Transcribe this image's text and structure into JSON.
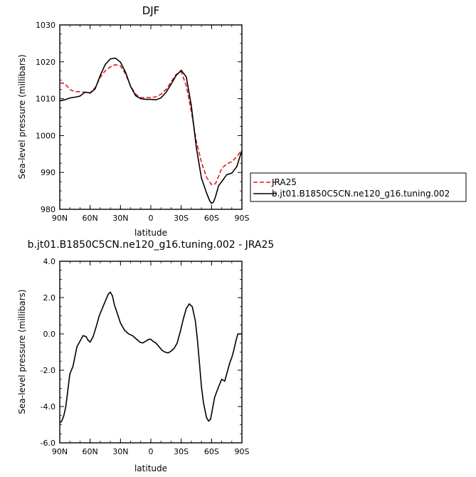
{
  "chart_data": [
    {
      "type": "line",
      "title": "DJF",
      "xlabel": "latitude",
      "ylabel": "Sea-level pressure (millibars)",
      "xlim": [
        90,
        -90
      ],
      "ylim": [
        980,
        1030
      ],
      "x_tick_values": [
        90,
        60,
        30,
        0,
        -30,
        -60,
        -90
      ],
      "x_tick_labels": [
        "90N",
        "60N",
        "30N",
        "0",
        "30S",
        "60S",
        "90S"
      ],
      "y_tick_values": [
        980,
        990,
        1000,
        1010,
        1020,
        1030
      ],
      "y_tick_labels": [
        "980",
        "990",
        "1000",
        "1010",
        "1020",
        "1030"
      ],
      "grid": false,
      "legend_position": "right",
      "series": [
        {
          "name": "JRA25",
          "color": "#e8141b",
          "dash": "dashed",
          "x": [
            90,
            85,
            80,
            75,
            70,
            65,
            60,
            55,
            50,
            45,
            40,
            35,
            30,
            25,
            20,
            15,
            10,
            5,
            0,
            -5,
            -10,
            -15,
            -20,
            -25,
            -30,
            -35,
            -40,
            -45,
            -50,
            -55,
            -60,
            -62,
            -64,
            -66,
            -68,
            -70,
            -75,
            -80,
            -85,
            -90
          ],
          "values": [
            1014.3,
            1014.1,
            1012.5,
            1011.9,
            1011.9,
            1011.7,
            1011.6,
            1013.0,
            1015.8,
            1017.6,
            1018.6,
            1019.2,
            1018.9,
            1016.7,
            1013.4,
            1011.2,
            1010.3,
            1010.3,
            1010.3,
            1010.5,
            1011.2,
            1012.5,
            1014.5,
            1016.6,
            1017.3,
            1013.5,
            1006.5,
            998.4,
            992.8,
            988.7,
            986.7,
            986.7,
            987.0,
            988.3,
            989.7,
            991.1,
            992.3,
            992.9,
            994.3,
            996.2
          ]
        },
        {
          "name": "b.jt01.B1850C5CN.ne120_g16.tuning.002",
          "color": "#000000",
          "dash": "solid",
          "x": [
            90,
            85,
            80,
            75,
            70,
            65,
            60,
            55,
            50,
            45,
            40,
            35,
            30,
            25,
            20,
            15,
            10,
            5,
            0,
            -5,
            -10,
            -15,
            -20,
            -25,
            -30,
            -35,
            -40,
            -45,
            -50,
            -55,
            -58,
            -60,
            -62,
            -64,
            -67,
            -70,
            -75,
            -80,
            -85,
            -90
          ],
          "values": [
            1009.4,
            1009.7,
            1010.2,
            1010.4,
            1010.7,
            1011.8,
            1011.5,
            1012.7,
            1016.3,
            1019.3,
            1020.8,
            1021.0,
            1019.9,
            1017.2,
            1013.3,
            1010.8,
            1010.0,
            1009.8,
            1009.8,
            1009.7,
            1010.2,
            1011.7,
            1013.9,
            1016.3,
            1017.7,
            1015.9,
            1008.1,
            996.7,
            988.5,
            984.5,
            982.4,
            981.6,
            982.0,
            983.5,
            986.4,
            987.5,
            989.4,
            989.8,
            991.6,
            996.0
          ]
        }
      ]
    },
    {
      "type": "line",
      "title": "b.jt01.B1850C5CN.ne120_g16.tuning.002 - JRA25",
      "xlabel": "latitude",
      "ylabel": "Sea-level pressure (millibars)",
      "xlim": [
        90,
        -90
      ],
      "ylim": [
        -6.0,
        4.0
      ],
      "x_tick_values": [
        90,
        60,
        30,
        0,
        -30,
        -60,
        -90
      ],
      "x_tick_labels": [
        "90N",
        "60N",
        "30N",
        "0",
        "30S",
        "60S",
        "90S"
      ],
      "y_tick_values": [
        -6.0,
        -4.0,
        -2.0,
        0.0,
        2.0,
        4.0
      ],
      "y_tick_labels": [
        "-6.0",
        "-4.0",
        "-2.0",
        "0.0",
        "2.0",
        "4.0"
      ],
      "grid": false,
      "series": [
        {
          "color": "#000000",
          "dash": "solid",
          "x": [
            90,
            88,
            86,
            84,
            80,
            77,
            73,
            70,
            67,
            64,
            62,
            60,
            57,
            54,
            51,
            48,
            45,
            42,
            40,
            38,
            36,
            33,
            30,
            26,
            22,
            18,
            14,
            11,
            8,
            5,
            2,
            0,
            -2,
            -5,
            -8,
            -11,
            -14,
            -17,
            -20,
            -23,
            -26,
            -29,
            -32,
            -35,
            -38,
            -41,
            -44,
            -46,
            -48,
            -50,
            -52,
            -55,
            -57,
            -59,
            -61,
            -63,
            -65,
            -67,
            -70,
            -73,
            -76,
            -78,
            -80,
            -82,
            -84,
            -86,
            -88,
            -90
          ],
          "values": [
            -4.9,
            -4.8,
            -4.5,
            -4.0,
            -2.2,
            -1.8,
            -0.7,
            -0.4,
            -0.1,
            -0.15,
            -0.35,
            -0.45,
            -0.15,
            0.4,
            1.0,
            1.4,
            1.8,
            2.2,
            2.3,
            2.1,
            1.6,
            1.1,
            0.6,
            0.2,
            0.0,
            -0.1,
            -0.3,
            -0.45,
            -0.5,
            -0.4,
            -0.3,
            -0.3,
            -0.4,
            -0.5,
            -0.7,
            -0.9,
            -1.0,
            -1.05,
            -0.95,
            -0.8,
            -0.5,
            0.1,
            0.8,
            1.4,
            1.65,
            1.5,
            0.7,
            -0.3,
            -1.6,
            -2.9,
            -3.8,
            -4.6,
            -4.8,
            -4.7,
            -4.1,
            -3.5,
            -3.2,
            -2.9,
            -2.5,
            -2.6,
            -2.0,
            -1.6,
            -1.3,
            -0.9,
            -0.4,
            0.0,
            0.0,
            0.0
          ]
        }
      ]
    }
  ]
}
